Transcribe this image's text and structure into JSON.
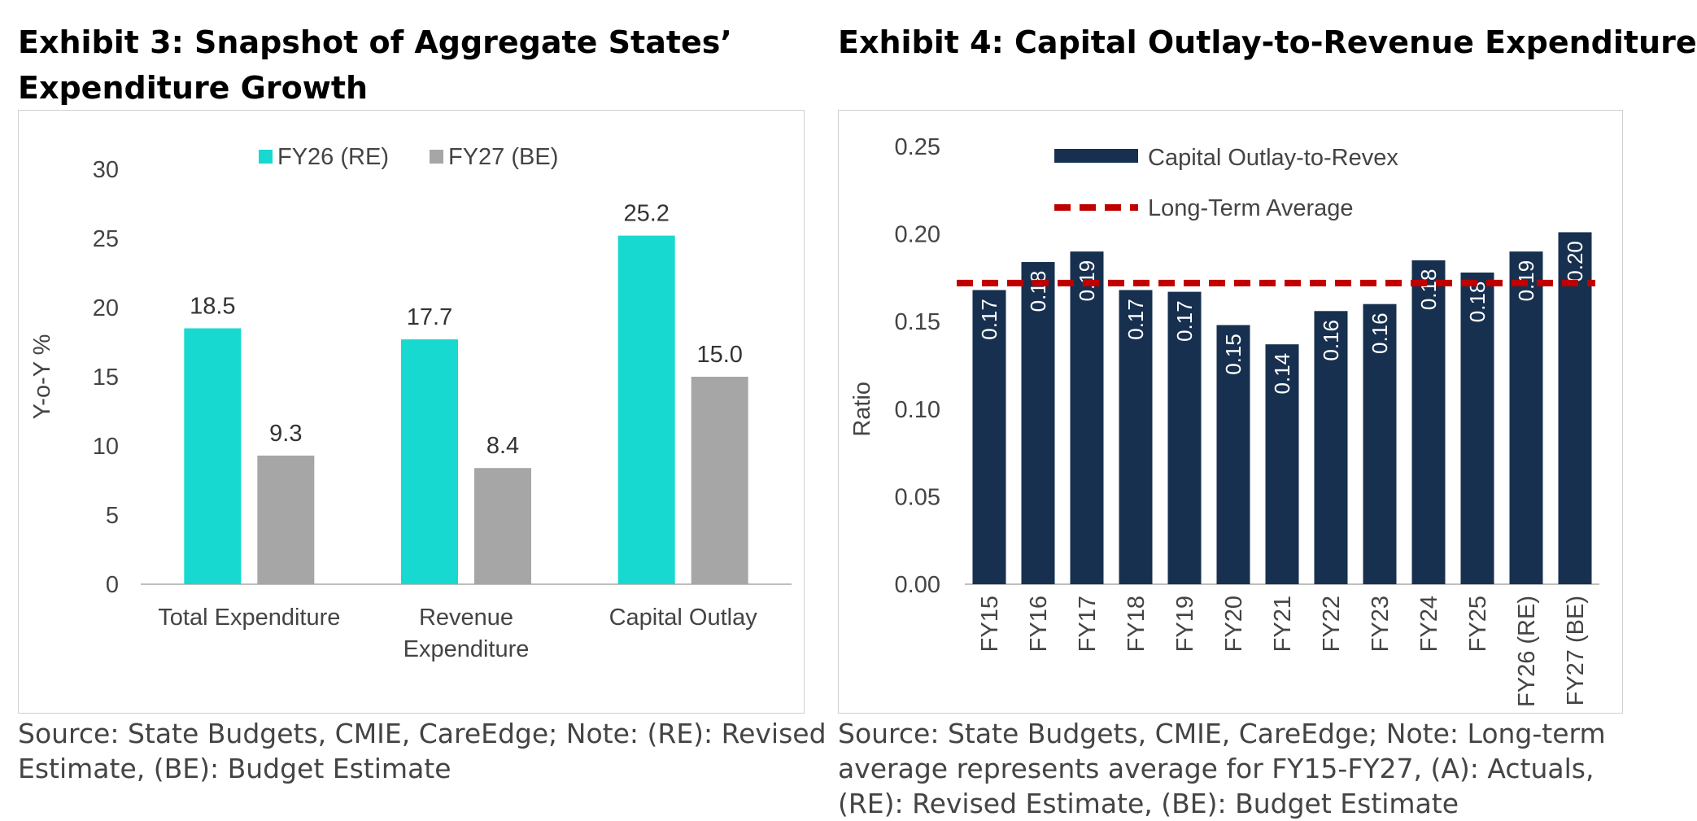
{
  "exhibit3": {
    "title": "Exhibit 3: Snapshot of Aggregate States’ Expenditure Growth",
    "source": "Source: State Budgets, CMIE, CareEdge; Note: (RE): Revised Estimate, (BE): Budget Estimate"
  },
  "exhibit4": {
    "title": "Exhibit 4: Capital Outlay-to-Revenue Expenditure",
    "source": "Source: State Budgets, CMIE, CareEdge; Note: Long-term average represents average for FY15-FY27, (A): Actuals, (RE): Revised Estimate, (BE): Budget Estimate"
  },
  "colors": {
    "fy26": "#17D9D0",
    "fy27": "#A6A6A6",
    "bars4": "#17304F",
    "avg": "#C00000",
    "axis_text": "#444444",
    "grid_axis": "#BFBFBF"
  },
  "chart_data": [
    {
      "type": "bar",
      "title": "Exhibit 3: Snapshot of Aggregate States’ Expenditure Growth",
      "categories": [
        [
          "Total Expenditure"
        ],
        [
          "Revenue",
          "Expenditure"
        ],
        [
          "Capital Outlay"
        ]
      ],
      "series": [
        {
          "name": "FY26 (RE)",
          "values": [
            18.5,
            17.7,
            25.2
          ],
          "labels": [
            "18.5",
            "17.7",
            "25.2"
          ]
        },
        {
          "name": "FY27 (BE)",
          "values": [
            9.3,
            8.4,
            15.0
          ],
          "labels": [
            "9.3",
            "8.4",
            "15.0"
          ]
        }
      ],
      "xlabel": "",
      "ylabel": "Y-o-Y %",
      "ylim": [
        0,
        30
      ],
      "yticks": [
        "0",
        "5",
        "10",
        "15",
        "20",
        "25",
        "30"
      ],
      "grid": false,
      "legend": "top-center"
    },
    {
      "type": "bar",
      "title": "Exhibit 4: Capital Outlay-to-Revenue Expenditure",
      "categories": [
        "FY15",
        "FY16",
        "FY17",
        "FY18",
        "FY19",
        "FY20",
        "FY21",
        "FY22",
        "FY23",
        "FY24",
        "FY25",
        "FY26 (RE)",
        "FY27 (BE)"
      ],
      "series": [
        {
          "name": "Capital Outlay-to-Revex",
          "values": [
            0.168,
            0.184,
            0.19,
            0.168,
            0.167,
            0.148,
            0.137,
            0.156,
            0.16,
            0.185,
            0.178,
            0.19,
            0.201
          ],
          "labels": [
            "0.17",
            "0.18",
            "0.19",
            "0.17",
            "0.17",
            "0.15",
            "0.14",
            "0.16",
            "0.16",
            "0.18",
            "0.18",
            "0.19",
            "0.20"
          ]
        },
        {
          "name": "Long-Term Average",
          "type": "line",
          "value": 0.172
        }
      ],
      "xlabel": "",
      "ylabel": "Ratio",
      "ylim": [
        0,
        0.25
      ],
      "yticks": [
        "0.00",
        "0.05",
        "0.10",
        "0.15",
        "0.20",
        "0.25"
      ],
      "grid": false,
      "legend": "top-left"
    }
  ]
}
